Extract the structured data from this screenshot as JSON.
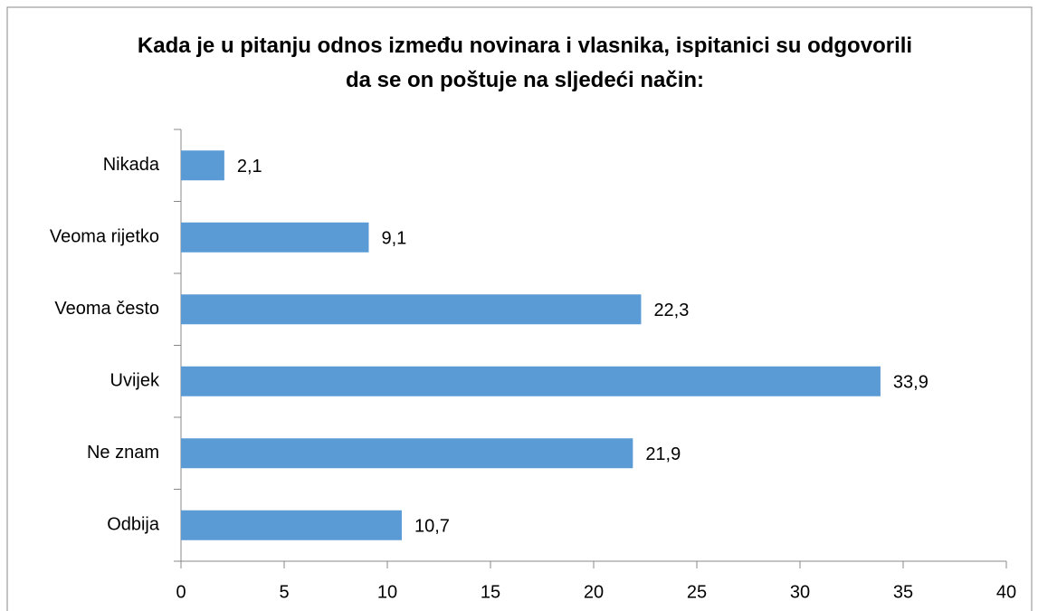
{
  "chart_data": {
    "type": "bar",
    "orientation": "horizontal",
    "title": "Kada je u pitanju odnos između novinara i vlasnika, ispitanici su odgovorili da se on poštuje na sljedeći način:",
    "categories": [
      "Nikada",
      "Veoma rijetko",
      "Veoma često",
      "Uvijek",
      "Ne znam",
      "Odbija"
    ],
    "values": [
      2.1,
      9.1,
      22.3,
      33.9,
      21.9,
      10.7
    ],
    "value_labels": [
      "2,1",
      "9,1",
      "22,3",
      "33,9",
      "21,9",
      "10,7"
    ],
    "color": "#5b9bd5",
    "xlim": [
      0,
      40
    ],
    "xticks": [
      0,
      5,
      10,
      15,
      20,
      25,
      30,
      35,
      40
    ],
    "grid": false
  }
}
